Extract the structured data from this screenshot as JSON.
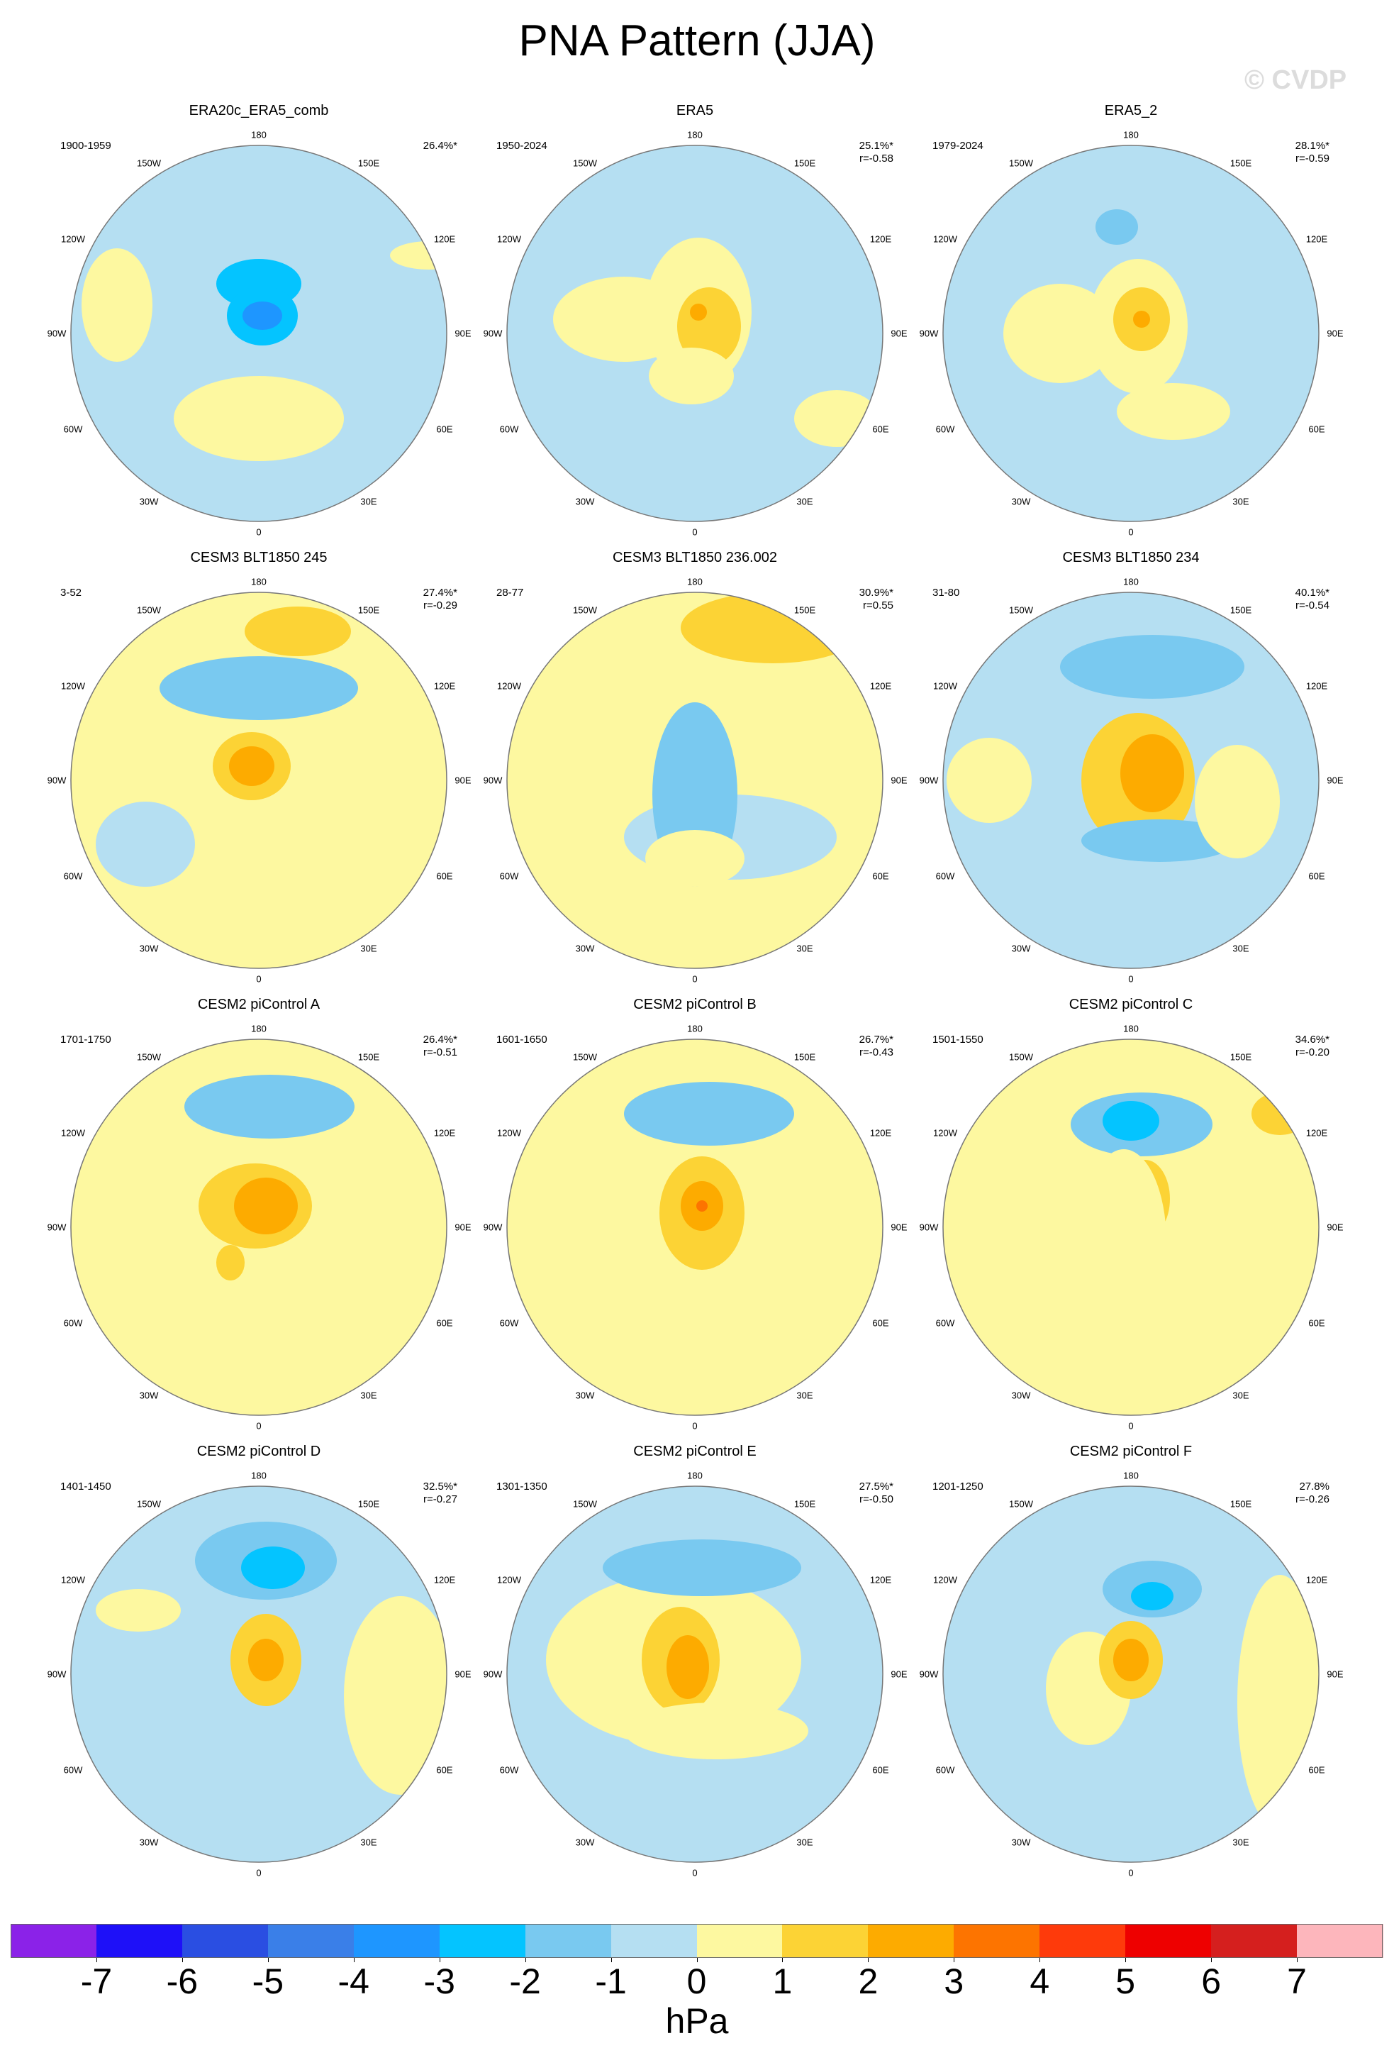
{
  "page": {
    "title": "PNA Pattern (JJA)",
    "watermark": "© CVDP"
  },
  "chart_data": {
    "type": "polar-contour-maps",
    "title": "PNA Pattern (JJA)",
    "units": "hPa",
    "colorbar": {
      "levels": [
        "-7",
        "-6",
        "-5",
        "-4",
        "-3",
        "-2",
        "-1",
        "0",
        "1",
        "2",
        "3",
        "4",
        "5",
        "6",
        "7"
      ],
      "colors": [
        "#8b22e8",
        "#1e10f8",
        "#2a4ee2",
        "#3a7fe8",
        "#1e96ff",
        "#04c4ff",
        "#79c9f0",
        "#b5dff2",
        "#fdf8a0",
        "#fcd335",
        "#fdab00",
        "#fd7400",
        "#fe3a0b",
        "#ee0000",
        "#d51f1e",
        "#fdb6bc"
      ]
    },
    "lon_labels": {
      "top": "180",
      "bottom": "0",
      "left": "90W",
      "right": "90E",
      "ul1": "150W",
      "ul2": "120W",
      "ll1": "60W",
      "ll2": "30W",
      "ur1": "150E",
      "ur2": "120E",
      "lr1": "60E",
      "lr2": "30E"
    },
    "panels": [
      {
        "title": "ERA20c_ERA5_comb",
        "years": "1900-1959",
        "pct": "26.4%*",
        "r": ""
      },
      {
        "title": "ERA5",
        "years": "1950-2024",
        "pct": "25.1%*",
        "r": "r=-0.58"
      },
      {
        "title": "ERA5_2",
        "years": "1979-2024",
        "pct": "28.1%*",
        "r": "r=-0.59"
      },
      {
        "title": "CESM3 BLT1850 245",
        "years": "3-52",
        "pct": "27.4%*",
        "r": "r=-0.29"
      },
      {
        "title": "CESM3 BLT1850 236.002",
        "years": "28-77",
        "pct": "30.9%*",
        "r": "r=0.55"
      },
      {
        "title": "CESM3 BLT1850 234",
        "years": "31-80",
        "pct": "40.1%*",
        "r": "r=-0.54"
      },
      {
        "title": "CESM2 piControl A",
        "years": "1701-1750",
        "pct": "26.4%*",
        "r": "r=-0.51"
      },
      {
        "title": "CESM2 piControl B",
        "years": "1601-1650",
        "pct": "26.7%*",
        "r": "r=-0.43"
      },
      {
        "title": "CESM2 piControl C",
        "years": "1501-1550",
        "pct": "34.6%*",
        "r": "r=-0.20"
      },
      {
        "title": "CESM2 piControl D",
        "years": "1401-1450",
        "pct": "32.5%*",
        "r": "r=-0.27"
      },
      {
        "title": "CESM2 piControl E",
        "years": "1301-1350",
        "pct": "27.5%*",
        "r": "r=-0.50"
      },
      {
        "title": "CESM2 piControl F",
        "years": "1201-1250",
        "pct": "27.8%",
        "r": "r=-0.26"
      }
    ]
  }
}
